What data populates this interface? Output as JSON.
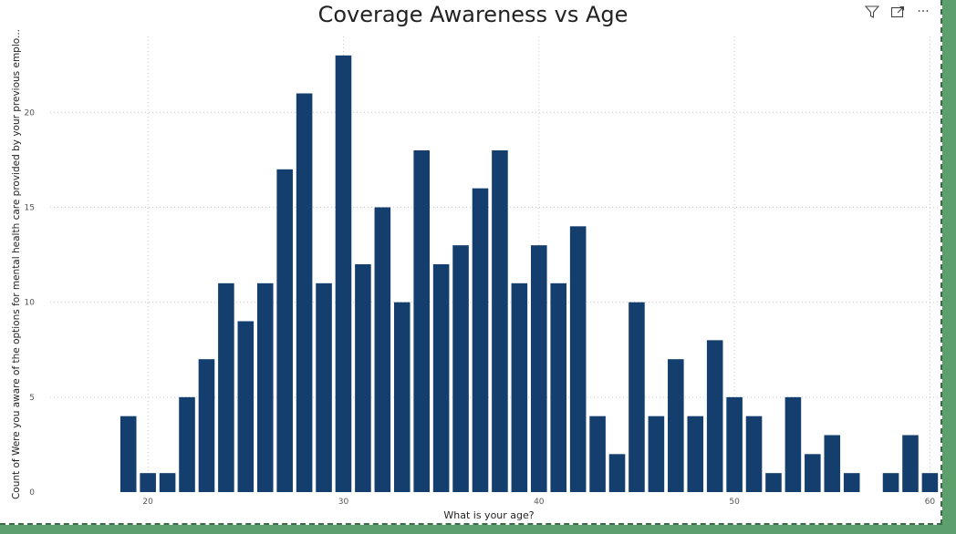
{
  "toolbar": {
    "filter_icon": "filter-icon",
    "focus_icon": "focus-mode-icon",
    "more_icon": "more-options-icon",
    "more_glyph": "···"
  },
  "chart_data": {
    "type": "bar",
    "title": "Coverage Awareness vs Age",
    "xlabel": "What is your age?",
    "ylabel": "Count of Were you aware of the options for mental health care provided by your previous emplo...",
    "x": [
      19,
      20,
      21,
      22,
      23,
      24,
      25,
      26,
      27,
      28,
      29,
      30,
      31,
      32,
      33,
      34,
      35,
      36,
      37,
      38,
      39,
      40,
      41,
      42,
      43,
      44,
      45,
      46,
      47,
      48,
      49,
      50,
      51,
      52,
      53,
      54,
      55,
      56,
      58,
      59,
      60
    ],
    "values": [
      4,
      1,
      1,
      5,
      7,
      11,
      9,
      11,
      17,
      21,
      11,
      23,
      12,
      15,
      10,
      18,
      12,
      13,
      16,
      18,
      11,
      13,
      11,
      14,
      4,
      2,
      10,
      4,
      7,
      4,
      8,
      5,
      4,
      1,
      5,
      2,
      3,
      1,
      1,
      3,
      1
    ],
    "xlim": [
      15,
      60.4
    ],
    "ylim": [
      0,
      24
    ],
    "xticks": [
      20,
      30,
      40,
      50,
      60
    ],
    "yticks": [
      0,
      5,
      10,
      15,
      20
    ],
    "bar_color": "#133e6e",
    "grid": true
  }
}
